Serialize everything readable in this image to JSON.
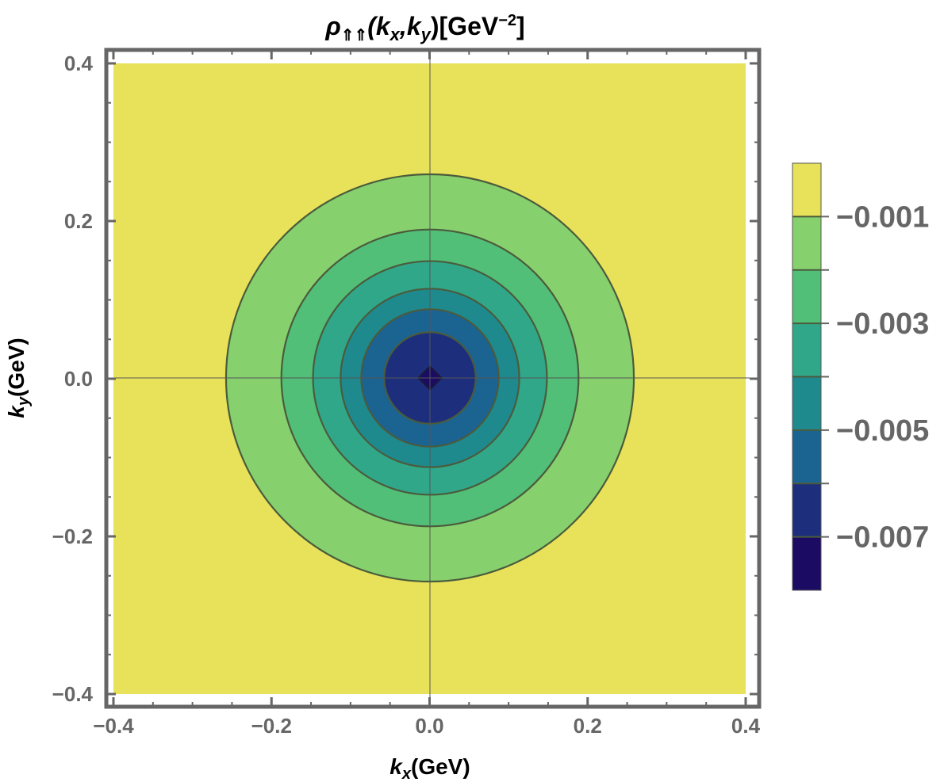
{
  "chart_data": {
    "type": "contour",
    "title": {
      "prefix": "ρ",
      "subscript": "⇑⇑",
      "args": "(k",
      "sub_x": "x",
      "comma": ",k",
      "sub_y": "y",
      "close": ")[GeV",
      "sup": "−2",
      "end": "]"
    },
    "xlabel": {
      "main": "k",
      "sub": "x",
      "unit": "(GeV)"
    },
    "ylabel": {
      "main": "k",
      "sub": "y",
      "unit": "(GeV)"
    },
    "xlim": [
      -0.4,
      0.4
    ],
    "ylim": [
      -0.4,
      0.4
    ],
    "x_ticks": [
      {
        "value": -0.4,
        "label": "−0.4"
      },
      {
        "value": -0.2,
        "label": "−0.2"
      },
      {
        "value": 0.0,
        "label": "0.0"
      },
      {
        "value": 0.2,
        "label": "0.2"
      },
      {
        "value": 0.4,
        "label": "0.4"
      }
    ],
    "y_ticks": [
      {
        "value": 0.4,
        "label": "0.4"
      },
      {
        "value": 0.2,
        "label": "0.2"
      },
      {
        "value": 0.0,
        "label": "0.0"
      },
      {
        "value": -0.2,
        "label": "−0.2"
      },
      {
        "value": -0.4,
        "label": "−0.4"
      }
    ],
    "contour_radii": [
      0.258,
      0.188,
      0.148,
      0.113,
      0.087,
      0.058,
      0.014
    ],
    "band_colors": [
      "#E8E25A",
      "#86D16E",
      "#52BF78",
      "#31A78A",
      "#1F8A8E",
      "#1B6391",
      "#1D2F7C",
      "#1B0B62"
    ],
    "line_color": "#4B5B3C",
    "colorbar": {
      "levels": [
        {
          "value": -0.001,
          "label": "−0.001"
        },
        {
          "value": -0.002,
          "label": ""
        },
        {
          "value": -0.003,
          "label": "−0.003"
        },
        {
          "value": -0.004,
          "label": ""
        },
        {
          "value": -0.005,
          "label": "−0.005"
        },
        {
          "value": -0.006,
          "label": ""
        },
        {
          "value": -0.007,
          "label": "−0.007"
        }
      ]
    }
  }
}
